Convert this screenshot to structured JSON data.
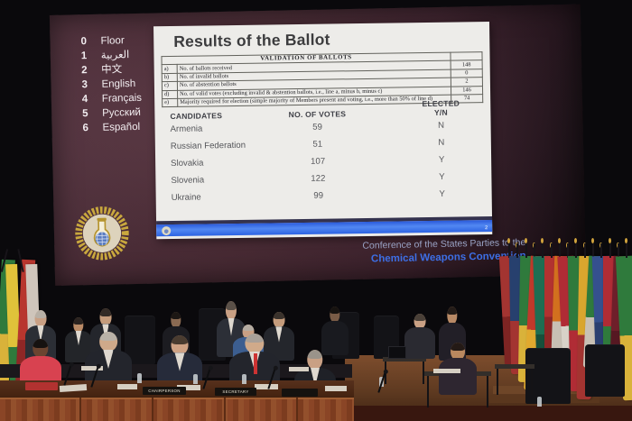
{
  "screen": {
    "languages": [
      {
        "num": "0",
        "label": "Floor"
      },
      {
        "num": "1",
        "label": "العربية"
      },
      {
        "num": "2",
        "label": "中文"
      },
      {
        "num": "3",
        "label": "English"
      },
      {
        "num": "4",
        "label": "Français"
      },
      {
        "num": "5",
        "label": "Русский"
      },
      {
        "num": "6",
        "label": "Español"
      }
    ],
    "slide": {
      "title": "Results of the Ballot",
      "validation_table": {
        "header": "VALIDATION OF BALLOTS",
        "rows": [
          {
            "key": "a)",
            "desc": "No. of ballots received",
            "value": "148"
          },
          {
            "key": "b)",
            "desc": "No. of invalid ballots",
            "value": "0"
          },
          {
            "key": "c)",
            "desc": "No. of abstention ballots",
            "value": "2"
          },
          {
            "key": "d)",
            "desc": "No. of valid votes (excluding invalid & abstention ballots, i.e., line a, minus b, minus c)",
            "value": "146"
          },
          {
            "key": "e)",
            "desc": "Majority required for election (simple majority of Members present and voting, i.e., more than 50% of line d)",
            "value": "74"
          }
        ]
      },
      "candidates_table": {
        "headers": {
          "candidates": "CANDIDATES",
          "votes": "NO. OF VOTES",
          "elected_line1": "ELECTED",
          "elected_line2": "Y/N"
        },
        "rows": [
          {
            "name": "Armenia",
            "votes": "59",
            "elected": "N"
          },
          {
            "name": "Russian Federation",
            "votes": "51",
            "elected": "N"
          },
          {
            "name": "Slovakia",
            "votes": "107",
            "elected": "Y"
          },
          {
            "name": "Slovenia",
            "votes": "122",
            "elected": "Y"
          },
          {
            "name": "Ukraine",
            "votes": "99",
            "elected": "Y"
          }
        ]
      },
      "page_number": "2"
    },
    "caption": {
      "line1": "Conference of the States Parties to the",
      "line2": "Chemical Weapons Convention"
    },
    "logo_name": "opcw-emblem"
  },
  "stage": {
    "nameplates": [
      "CHAIRPERSON",
      "SECRETARY"
    ]
  },
  "colors": {
    "screen_maroon": "#4f2c37",
    "slide_bg": "#edece9",
    "footer_blue_bar": "#3a70ee",
    "caption_gray": "#99a2c4",
    "caption_blue": "#3d6fe6",
    "wreath_gold": "#c9a83e",
    "right_flags": [
      [
        "#a33431",
        "#7e2423"
      ],
      [
        "#27406e",
        "#a33431"
      ],
      [
        "#2f7a3c",
        "#d9b23a"
      ],
      [
        "#c0392b",
        "#e0a92f"
      ],
      [
        "#1e6e52",
        "#174f3b"
      ],
      [
        "#b23230",
        "#8e2726"
      ],
      [
        "#d2701e",
        "#c8c0b4"
      ],
      [
        "#b02c35",
        "#d8d2c8"
      ],
      [
        "#2f7a3c",
        "#b02c35"
      ],
      [
        "#d9a62e",
        "#a33431"
      ],
      [
        "#2f7a3c",
        "#c8c0b4"
      ],
      [
        "#35508e",
        "#2a3f70"
      ],
      [
        "#b02c35",
        "#2f7a3c"
      ],
      [
        "#6e1f2a",
        "#561822"
      ],
      [
        "#2f7a3c",
        "#d9b23a"
      ]
    ],
    "left_flags": [
      [
        "#2f7a3c",
        "#d9b23a"
      ],
      [
        "#e0c23a",
        "#2f7a3c"
      ],
      [
        "#b8362e",
        "#8e2726"
      ],
      [
        "#cfc5bb",
        "#9a8f84"
      ]
    ]
  }
}
